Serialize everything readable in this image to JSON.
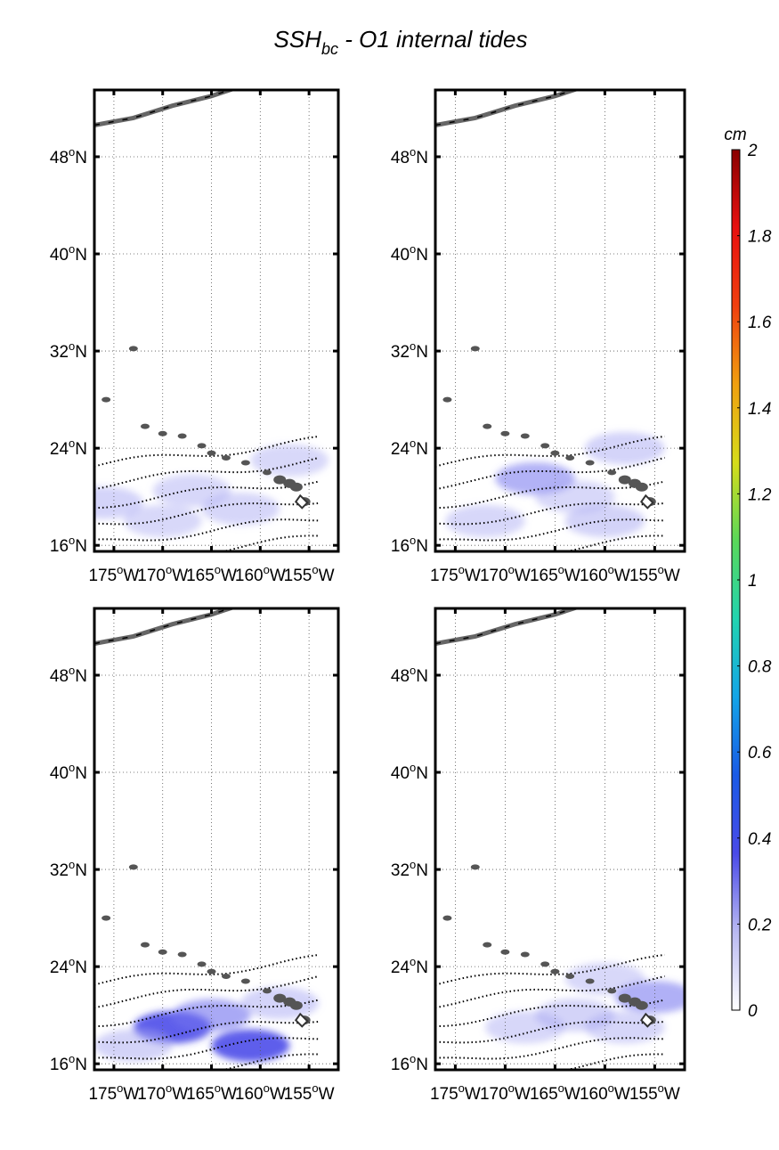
{
  "chart_data": {
    "type": "heatmap",
    "title": {
      "prefix": "SSH",
      "subscript": "bc",
      "suffix": " - O1 internal tides"
    },
    "x_ticks": [
      {
        "value": -175,
        "deg": "175",
        "hemi": "W"
      },
      {
        "value": -170,
        "deg": "170",
        "hemi": "W"
      },
      {
        "value": -165,
        "deg": "165",
        "hemi": "W"
      },
      {
        "value": -160,
        "deg": "160",
        "hemi": "W"
      },
      {
        "value": -155,
        "deg": "155",
        "hemi": "W"
      }
    ],
    "y_ticks": [
      {
        "value": 16,
        "deg": "16",
        "hemi": "N"
      },
      {
        "value": 24,
        "deg": "24",
        "hemi": "N"
      },
      {
        "value": 32,
        "deg": "32",
        "hemi": "N"
      },
      {
        "value": 40,
        "deg": "40",
        "hemi": "N"
      },
      {
        "value": 48,
        "deg": "48",
        "hemi": "N"
      }
    ],
    "xlim": [
      -177,
      -152
    ],
    "ylim": [
      15.5,
      53.5
    ],
    "grid": true,
    "colorbar": {
      "unit": "cm",
      "range": [
        0,
        2
      ],
      "ticks": [
        "0",
        "0.2",
        "0.4",
        "0.6",
        "0.8",
        "1",
        "1.2",
        "1.4",
        "1.6",
        "1.8",
        "2"
      ],
      "colors": [
        "#ffffff",
        "#b9b9f2",
        "#4a4ae8",
        "#1a5ae6",
        "#14a5e8",
        "#22d4b0",
        "#59d85a",
        "#d6dc1a",
        "#f0a010",
        "#f04010",
        "#e81010",
        "#8a0000"
      ]
    },
    "panels": [
      {
        "name": "top-left",
        "blobs": [
          {
            "lon": -167,
            "lat": 20.5,
            "val": 0.07
          },
          {
            "lon": -162,
            "lat": 19,
            "val": 0.08
          },
          {
            "lon": -176,
            "lat": 19.5,
            "val": 0.09
          },
          {
            "lon": -157,
            "lat": 23,
            "val": 0.06
          },
          {
            "lon": -170,
            "lat": 18,
            "val": 0.06
          }
        ]
      },
      {
        "name": "top-right",
        "blobs": [
          {
            "lon": -167,
            "lat": 21.5,
            "val": 0.12
          },
          {
            "lon": -160,
            "lat": 18,
            "val": 0.1
          },
          {
            "lon": -158,
            "lat": 24,
            "val": 0.09
          },
          {
            "lon": -172,
            "lat": 18,
            "val": 0.07
          },
          {
            "lon": -163,
            "lat": 20,
            "val": 0.06
          }
        ]
      },
      {
        "name": "bottom-left",
        "blobs": [
          {
            "lon": -169,
            "lat": 19,
            "val": 0.3
          },
          {
            "lon": -161,
            "lat": 17.5,
            "val": 0.3
          },
          {
            "lon": -165,
            "lat": 20,
            "val": 0.16
          },
          {
            "lon": -173,
            "lat": 17.5,
            "val": 0.1
          },
          {
            "lon": -158,
            "lat": 21,
            "val": 0.09
          }
        ]
      },
      {
        "name": "bottom-right",
        "blobs": [
          {
            "lon": -163,
            "lat": 20,
            "val": 0.1
          },
          {
            "lon": -155,
            "lat": 21.5,
            "val": 0.13
          },
          {
            "lon": -168,
            "lat": 19,
            "val": 0.07
          },
          {
            "lon": -158,
            "lat": 19,
            "val": 0.08
          },
          {
            "lon": -160,
            "lat": 23,
            "val": 0.06
          }
        ]
      }
    ]
  }
}
